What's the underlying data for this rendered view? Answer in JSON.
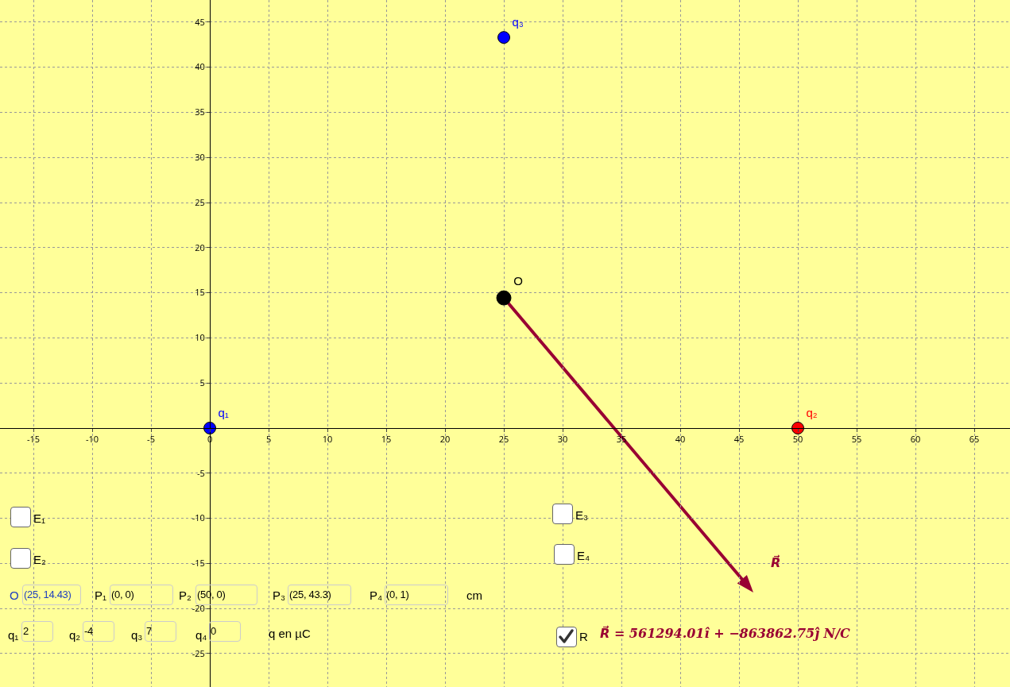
{
  "chart_data": {
    "type": "scatter",
    "xlim": [
      -17.84,
      68.04
    ],
    "ylim": [
      -28.7,
      47.45
    ],
    "xticks": [
      -15,
      -10,
      -5,
      0,
      5,
      10,
      15,
      20,
      25,
      30,
      35,
      40,
      45,
      50,
      55,
      60,
      65
    ],
    "yticks": [
      -25,
      -20,
      -15,
      -10,
      -5,
      5,
      10,
      15,
      20,
      25,
      30,
      35,
      40,
      45
    ],
    "grid": true,
    "series": [
      {
        "name": "q₁",
        "color": "#0000ff",
        "x": [
          0
        ],
        "values": [
          0
        ]
      },
      {
        "name": "q₂",
        "color": "#ff0000",
        "x": [
          50
        ],
        "values": [
          0
        ]
      },
      {
        "name": "q₃",
        "color": "#0000ff",
        "x": [
          25
        ],
        "values": [
          43.3
        ]
      },
      {
        "name": "O",
        "color": "#000000",
        "x": [
          25
        ],
        "values": [
          14.43
        ]
      }
    ],
    "annotations": [
      "E₁",
      "E₂",
      "E₃",
      "E₄",
      "R",
      "O",
      "(25, 14.43)",
      "P₁",
      "(0, 0)",
      "P₂",
      "(50, 0)",
      "P₃",
      "(25, 43.3)",
      "P₄",
      "(0, 1)",
      "cm",
      "q₁",
      "2",
      "q₂",
      "-4",
      "q₃",
      "7",
      "q₄",
      "0",
      "q en µC",
      "R⃗ = 561294.01î + −863862.75ĵ N/C",
      "R⃗"
    ]
  }
}
